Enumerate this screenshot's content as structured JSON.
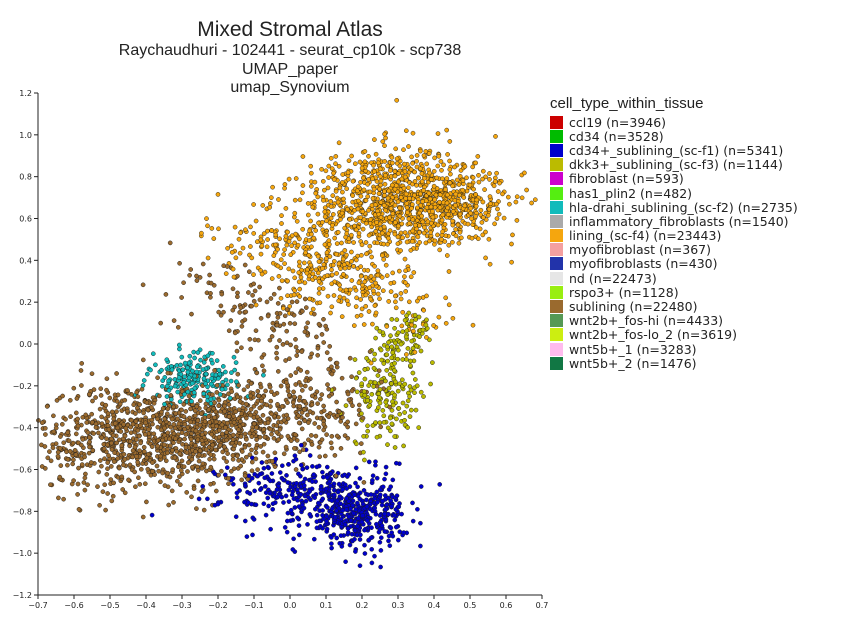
{
  "chart_data": {
    "type": "scatter",
    "title": "Mixed Stromal Atlas",
    "subtitle_lines": [
      "Raychaudhuri - 102441 - seurat_cp10k - scp738",
      "UMAP_paper",
      "umap_Synovium"
    ],
    "xlabel": "",
    "ylabel": "",
    "xlim": [
      -0.7,
      0.7
    ],
    "ylim": [
      -1.2,
      1.2
    ],
    "x_ticks": [
      "−0.7",
      "−0.6",
      "−0.5",
      "−0.4",
      "−0.3",
      "−0.2",
      "−0.1",
      "0.0",
      "0.1",
      "0.2",
      "0.3",
      "0.4",
      "0.5",
      "0.6",
      "0.7"
    ],
    "y_ticks": [
      "1.2",
      "1.0",
      "0.8",
      "0.6",
      "0.4",
      "0.2",
      "0.0",
      "−0.2",
      "−0.4",
      "−0.6",
      "−0.8",
      "−1.0",
      "−1.2"
    ],
    "legend_title": "cell_type_within_tissue",
    "legend_placement": "right",
    "series": [
      {
        "name": "ccl19 (n=3946)",
        "label": "ccl19",
        "n": 3946,
        "color": "#cc0000"
      },
      {
        "name": "cd34 (n=3528)",
        "label": "cd34",
        "n": 3528,
        "color": "#00bb00"
      },
      {
        "name": "cd34+_sublining_(sc-f1) (n=5341)",
        "label": "cd34+_sublining_(sc-f1)",
        "n": 5341,
        "color": "#0000cc"
      },
      {
        "name": "dkk3+_sublining_(sc-f3) (n=1144)",
        "label": "dkk3+_sublining_(sc-f3)",
        "n": 1144,
        "color": "#bbbb00"
      },
      {
        "name": "fibroblast (n=593)",
        "label": "fibroblast",
        "n": 593,
        "color": "#cc00cc"
      },
      {
        "name": "has1_plin2 (n=482)",
        "label": "has1_plin2",
        "n": 482,
        "color": "#55ee11"
      },
      {
        "name": "hla-drahi_sublining_(sc-f2) (n=2735)",
        "label": "hla-drahi_sublining_(sc-f2)",
        "n": 2735,
        "color": "#11bbbb"
      },
      {
        "name": "inflammatory_fibroblasts (n=1540)",
        "label": "inflammatory_fibroblasts",
        "n": 1540,
        "color": "#aaaaaa"
      },
      {
        "name": "lining_(sc-f4) (n=23443)",
        "label": "lining_(sc-f4)",
        "n": 23443,
        "color": "#f5a60e"
      },
      {
        "name": "myofibroblast (n=367)",
        "label": "myofibroblast",
        "n": 367,
        "color": "#f4a0a0"
      },
      {
        "name": "myofibroblasts (n=430)",
        "label": "myofibroblasts",
        "n": 430,
        "color": "#2233aa"
      },
      {
        "name": "nd (n=22473)",
        "label": "nd",
        "n": 22473,
        "color": "#e6e6e6"
      },
      {
        "name": "rspo3+ (n=1128)",
        "label": "rspo3+",
        "n": 1128,
        "color": "#99ee11"
      },
      {
        "name": "sublining (n=22480)",
        "label": "sublining",
        "n": 22480,
        "color": "#9a6a2e"
      },
      {
        "name": "wnt2b+_fos-hi (n=4433)",
        "label": "wnt2b+_fos-hi",
        "n": 4433,
        "color": "#559955"
      },
      {
        "name": "wnt2b+_fos-lo_2 (n=3619)",
        "label": "wnt2b+_fos-lo_2",
        "n": 3619,
        "color": "#ccee11"
      },
      {
        "name": "wnt5b+_1 (n=3283)",
        "label": "wnt5b+_1",
        "n": 3283,
        "color": "#ffbbee"
      },
      {
        "name": "wnt5b+_2 (n=1476)",
        "label": "wnt5b+_2",
        "n": 1476,
        "color": "#117744"
      }
    ],
    "clusters": [
      {
        "series": "lining_(sc-f4)",
        "cx": 0.29,
        "cy": 0.67,
        "sx": 0.13,
        "sy": 0.13,
        "rot": 25,
        "weight": 24
      },
      {
        "series": "lining_(sc-f4)",
        "cx": 0.1,
        "cy": 0.35,
        "sx": 0.08,
        "sy": 0.18,
        "rot": 50,
        "weight": 9
      },
      {
        "series": "lining_(sc-f4)",
        "cx": 0.47,
        "cy": 0.68,
        "sx": 0.07,
        "sy": 0.07,
        "rot": 0,
        "weight": 5
      },
      {
        "series": "sublining",
        "cx": -0.42,
        "cy": -0.45,
        "sx": 0.14,
        "sy": 0.13,
        "rot": 0,
        "weight": 19
      },
      {
        "series": "sublining",
        "cx": -0.18,
        "cy": -0.4,
        "sx": 0.12,
        "sy": 0.1,
        "rot": 0,
        "weight": 11
      },
      {
        "series": "sublining",
        "cx": 0.04,
        "cy": -0.32,
        "sx": 0.1,
        "sy": 0.1,
        "rot": 0,
        "weight": 5
      },
      {
        "series": "sublining",
        "cx": -0.05,
        "cy": 0.1,
        "sx": 0.08,
        "sy": 0.16,
        "rot": 40,
        "weight": 4
      },
      {
        "series": "cd34+_sublining_(sc-f1)",
        "cx": 0.18,
        "cy": -0.82,
        "sx": 0.07,
        "sy": 0.07,
        "rot": 0,
        "weight": 9
      },
      {
        "series": "cd34+_sublining_(sc-f1)",
        "cx": 0.05,
        "cy": -0.7,
        "sx": 0.12,
        "sy": 0.08,
        "rot": 0,
        "weight": 7
      },
      {
        "series": "hla-drahi_sublining_(sc-f2)",
        "cx": -0.27,
        "cy": -0.17,
        "sx": 0.06,
        "sy": 0.06,
        "rot": 0,
        "weight": 5
      },
      {
        "series": "dkk3+_sublining_(sc-f3)",
        "cx": 0.27,
        "cy": -0.25,
        "sx": 0.05,
        "sy": 0.12,
        "rot": 0,
        "weight": 4
      },
      {
        "series": "dkk3+_sublining_(sc-f3)",
        "cx": 0.32,
        "cy": 0.02,
        "sx": 0.04,
        "sy": 0.07,
        "rot": 0,
        "weight": 2
      }
    ],
    "n_points_drawn": 4200
  }
}
